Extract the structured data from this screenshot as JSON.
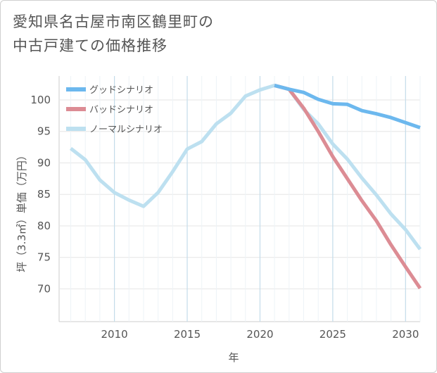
{
  "title": {
    "line1": "愛知県名古屋市南区鶴里町の",
    "line2": "中古戸建ての価格推移"
  },
  "chart_data": {
    "type": "line",
    "xlabel": "年",
    "ylabel": "坪（3.3㎡）単価（万円）",
    "xlim": [
      2006.2,
      2031
    ],
    "ylim": [
      64.8,
      103.8
    ],
    "xticks": [
      2010,
      2015,
      2020,
      2025,
      2030
    ],
    "yticks": [
      70,
      75,
      80,
      85,
      90,
      95,
      100
    ],
    "grid": true,
    "legend_position": "top-left",
    "series": [
      {
        "name": "グッドシナリオ",
        "color": "#6cb8ee",
        "x": [
          2021,
          2022,
          2023,
          2024,
          2025,
          2026,
          2027,
          2028,
          2029,
          2030,
          2031
        ],
        "y": [
          102.3,
          101.7,
          101.2,
          100.1,
          99.4,
          99.3,
          98.3,
          97.8,
          97.2,
          96.4,
          95.6
        ]
      },
      {
        "name": "バッドシナリオ",
        "color": "#dc8c94",
        "x": [
          2021,
          2022,
          2023,
          2024,
          2025,
          2026,
          2027,
          2028,
          2029,
          2030,
          2031
        ],
        "y": [
          102.3,
          101.7,
          98.7,
          95.0,
          91.0,
          87.5,
          84.0,
          80.8,
          77.0,
          73.5,
          70.1
        ]
      },
      {
        "name": "ノーマルシナリオ",
        "color": "#bde0f0",
        "x": [
          2007,
          2008,
          2009,
          2010,
          2011,
          2012,
          2013,
          2014,
          2015,
          2016,
          2017,
          2018,
          2019,
          2020,
          2021,
          2022,
          2023,
          2024,
          2025,
          2026,
          2027,
          2028,
          2029,
          2030,
          2031
        ],
        "y": [
          92.3,
          90.5,
          87.3,
          85.3,
          84.1,
          83.1,
          85.3,
          88.6,
          92.2,
          93.4,
          96.2,
          97.9,
          100.6,
          101.6,
          102.3,
          101.7,
          98.5,
          96.2,
          93.0,
          90.6,
          87.6,
          84.9,
          81.9,
          79.4,
          76.3
        ]
      }
    ]
  }
}
